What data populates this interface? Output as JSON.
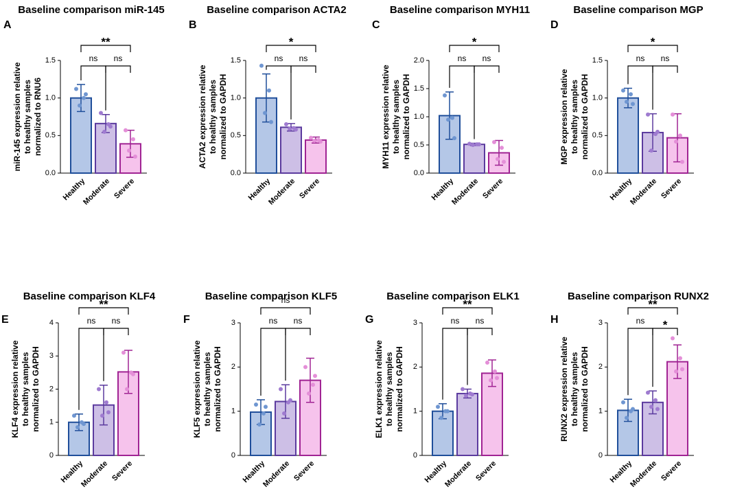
{
  "palette": {
    "colors": [
      "#b4c7e7",
      "#cdbfe6",
      "#f6c3ec"
    ],
    "edge_colors": [
      "#1f4e9a",
      "#5b3a9e",
      "#a02393"
    ],
    "point_colors": [
      "#6f96d1",
      "#9f7bd0",
      "#e48fd8"
    ]
  },
  "chart_data": [
    {
      "type": "bar",
      "panel": "A",
      "title": "Baseline comparison miR-145",
      "ylabel": [
        "miR-145 expression relative",
        "to healthy samples",
        "normalized to RNU6"
      ],
      "categories": [
        "Healthy",
        "Moderate",
        "Severe"
      ],
      "values": [
        1.0,
        0.66,
        0.39
      ],
      "errors": [
        0.18,
        0.12,
        0.18
      ],
      "points": [
        [
          1.12,
          1.0,
          0.9,
          1.05
        ],
        [
          0.8,
          0.65,
          0.55,
          0.62
        ],
        [
          0.57,
          0.45,
          0.3,
          0.22
        ]
      ],
      "ylim": [
        0,
        1.5
      ],
      "yticks": [
        {
          "value": 0,
          "label": "0.0"
        },
        0.5,
        {
          "value": 1,
          "label": "1.0"
        },
        1.5
      ],
      "comparisons": [
        {
          "groups": [
            0,
            1
          ],
          "label": "ns"
        },
        {
          "groups": [
            1,
            2
          ],
          "label": "ns"
        },
        {
          "groups": [
            0,
            2
          ],
          "label": "**"
        }
      ]
    },
    {
      "type": "bar",
      "panel": "B",
      "title": "Baseline comparison ACTA2",
      "ylabel": [
        "ACTA2 expression relative",
        "to healthy samples",
        "normalized to GAPDH"
      ],
      "categories": [
        "Healthy",
        "Moderate",
        "Severe"
      ],
      "values": [
        1.0,
        0.61,
        0.44
      ],
      "errors": [
        0.32,
        0.05,
        0.04
      ],
      "points": [
        [
          1.43,
          1.1,
          0.8,
          0.68
        ],
        [
          0.65,
          0.6,
          0.59,
          0.58
        ],
        [
          0.47,
          0.44,
          0.43,
          0.42
        ]
      ],
      "ylim": [
        0,
        1.5
      ],
      "yticks": [
        {
          "value": 0,
          "label": "0.0"
        },
        0.5,
        {
          "value": 1,
          "label": "1.0"
        },
        1.5
      ],
      "comparisons": [
        {
          "groups": [
            0,
            1
          ],
          "label": "ns"
        },
        {
          "groups": [
            1,
            2
          ],
          "label": "ns"
        },
        {
          "groups": [
            0,
            2
          ],
          "label": "*"
        }
      ]
    },
    {
      "type": "bar",
      "panel": "C",
      "title": "Baseline comparison MYH11",
      "ylabel": [
        "MYH11 expression relative",
        "to healthy samples",
        "normalized to GAPDH"
      ],
      "categories": [
        "Healthy",
        "Moderate",
        "Severe"
      ],
      "values": [
        1.02,
        0.51,
        0.36
      ],
      "errors": [
        0.42,
        0.02,
        0.22
      ],
      "points": [
        [
          1.38,
          0.98,
          0.95,
          0.62
        ],
        [
          0.52,
          0.51,
          0.5,
          0.51
        ],
        [
          0.55,
          0.45,
          0.25,
          0.2
        ]
      ],
      "ylim": [
        0,
        2
      ],
      "yticks": [
        {
          "value": 0,
          "label": "0.0"
        },
        0.5,
        {
          "value": 1,
          "label": "1.0"
        },
        1.5,
        {
          "value": 2,
          "label": "2.0"
        }
      ],
      "comparisons": [
        {
          "groups": [
            0,
            1
          ],
          "label": "ns"
        },
        {
          "groups": [
            1,
            2
          ],
          "label": "ns"
        },
        {
          "groups": [
            0,
            2
          ],
          "label": "*"
        }
      ]
    },
    {
      "type": "bar",
      "panel": "D",
      "title": "Baseline comparison MGP",
      "ylabel": [
        "MGP expression relative",
        "to healthy samples",
        "normalized to GAPDH"
      ],
      "categories": [
        "Healthy",
        "Moderate",
        "Severe"
      ],
      "values": [
        1.0,
        0.54,
        0.47
      ],
      "errors": [
        0.13,
        0.25,
        0.32
      ],
      "points": [
        [
          1.1,
          1.05,
          0.95,
          0.92
        ],
        [
          0.78,
          0.52,
          0.3,
          0.55
        ],
        [
          0.78,
          0.5,
          0.42,
          0.15
        ]
      ],
      "ylim": [
        0,
        1.5
      ],
      "yticks": [
        {
          "value": 0,
          "label": "0.0"
        },
        0.5,
        {
          "value": 1,
          "label": "1.0"
        },
        1.5
      ],
      "comparisons": [
        {
          "groups": [
            0,
            1
          ],
          "label": "ns"
        },
        {
          "groups": [
            1,
            2
          ],
          "label": "ns"
        },
        {
          "groups": [
            0,
            2
          ],
          "label": "*"
        }
      ]
    },
    {
      "type": "bar",
      "panel": "E",
      "title": "Baseline comparison KLF4",
      "ylabel": [
        "KLF4 expression relative",
        "to healthy samples",
        "normalized to GAPDH"
      ],
      "categories": [
        "Healthy",
        "Moderate",
        "Severe"
      ],
      "values": [
        1.0,
        1.52,
        2.52
      ],
      "errors": [
        0.25,
        0.6,
        0.65
      ],
      "points": [
        [
          1.2,
          1.0,
          0.85,
          0.95
        ],
        [
          2.0,
          1.6,
          1.2,
          1.3
        ],
        [
          3.1,
          2.5,
          2.0,
          2.45
        ]
      ],
      "ylim": [
        0,
        4
      ],
      "yticks": [
        0,
        1,
        2,
        3,
        4
      ],
      "comparisons": [
        {
          "groups": [
            0,
            1
          ],
          "label": "ns"
        },
        {
          "groups": [
            1,
            2
          ],
          "label": "ns"
        },
        {
          "groups": [
            0,
            2
          ],
          "label": "**"
        }
      ]
    },
    {
      "type": "bar",
      "panel": "F",
      "title": "Baseline comparison KLF5",
      "ylabel": [
        "KLF5 expression relative",
        "to healthy samples",
        "normalized to GAPDH"
      ],
      "categories": [
        "Healthy",
        "Moderate",
        "Severe"
      ],
      "values": [
        0.98,
        1.22,
        1.7
      ],
      "errors": [
        0.28,
        0.38,
        0.5
      ],
      "points": [
        [
          1.15,
          0.95,
          0.7,
          1.1
        ],
        [
          1.5,
          1.2,
          0.95,
          1.25
        ],
        [
          2.0,
          1.6,
          1.4,
          1.8
        ]
      ],
      "ylim": [
        0,
        3
      ],
      "yticks": [
        0,
        1,
        2,
        3
      ],
      "comparisons": [
        {
          "groups": [
            0,
            1
          ],
          "label": "ns"
        },
        {
          "groups": [
            1,
            2
          ],
          "label": "ns"
        },
        {
          "groups": [
            0,
            2
          ],
          "label": "ns"
        }
      ]
    },
    {
      "type": "bar",
      "panel": "G",
      "title": "Baseline comparison ELK1",
      "ylabel": [
        "ELK1 expression relative",
        "to healthy samples",
        "normalized to GAPDH"
      ],
      "categories": [
        "Healthy",
        "Moderate",
        "Severe"
      ],
      "values": [
        1.0,
        1.4,
        1.86
      ],
      "errors": [
        0.17,
        0.1,
        0.3
      ],
      "points": [
        [
          1.1,
          1.0,
          0.85,
          1.0
        ],
        [
          1.5,
          1.4,
          1.35,
          1.38
        ],
        [
          2.1,
          1.9,
          1.7,
          1.75
        ]
      ],
      "ylim": [
        0,
        3
      ],
      "yticks": [
        0,
        1,
        2,
        3
      ],
      "comparisons": [
        {
          "groups": [
            0,
            1
          ],
          "label": "ns"
        },
        {
          "groups": [
            1,
            2
          ],
          "label": "ns"
        },
        {
          "groups": [
            0,
            2
          ],
          "label": "**"
        }
      ]
    },
    {
      "type": "bar",
      "panel": "H",
      "title": "Baseline comparison RUNX2",
      "ylabel": [
        "RUNX2 expression relative",
        "to healthy samples",
        "normalized to GAPDH"
      ],
      "categories": [
        "Healthy",
        "Moderate",
        "Severe"
      ],
      "values": [
        1.02,
        1.2,
        2.12
      ],
      "errors": [
        0.25,
        0.26,
        0.38
      ],
      "points": [
        [
          1.2,
          1.0,
          0.85,
          1.05
        ],
        [
          1.42,
          1.25,
          1.1,
          1.05
        ],
        [
          2.65,
          2.2,
          1.9,
          1.95
        ]
      ],
      "ylim": [
        0,
        3
      ],
      "yticks": [
        0,
        1,
        2,
        3
      ],
      "comparisons": [
        {
          "groups": [
            0,
            1
          ],
          "label": "ns"
        },
        {
          "groups": [
            1,
            2
          ],
          "label": "*"
        },
        {
          "groups": [
            0,
            2
          ],
          "label": "**"
        }
      ]
    }
  ]
}
